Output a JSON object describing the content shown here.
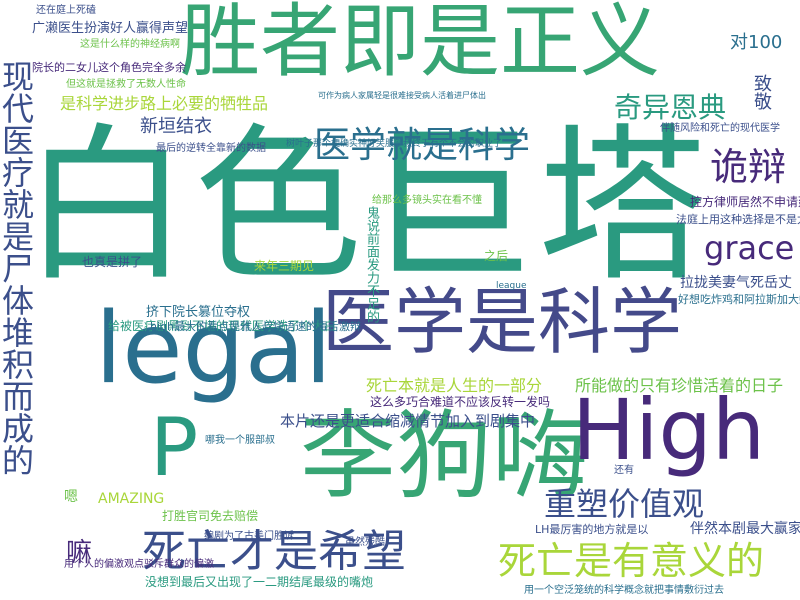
{
  "colors": {
    "background": "#ffffff",
    "teal": "#2a9a80",
    "blue_teal": "#2a6f8e",
    "blue": "#3b4f8b",
    "purple": "#472a7a",
    "green": "#37a574",
    "light_green": "#6cc24a",
    "yellow_green": "#a9d63a"
  },
  "words": {
    "w01": "白色巨塔",
    "w02": "胜者即是正义",
    "w03": "医学是科学",
    "w04": "legal",
    "w05": "李狗嗨",
    "w06": "High",
    "w07": "P",
    "w08": "现代医疗就是尸体堆积而成的",
    "w09": "死亡才是希望",
    "w10": "死亡是有意义的",
    "w11": "重塑价值观",
    "w12": "医学就是科学",
    "w13": "诡辩",
    "w14": "grace",
    "w15": "奇异恩典",
    "w16": "是科学进步路上必要的牺牲品",
    "w17": "新垣结衣",
    "w18": "嘛",
    "w19": "对100",
    "w20": "致敬",
    "w21": "死亡本就是人生的一部分",
    "w22": "所能做的只有珍惜活着的日子",
    "w23": "本片还是更适合缩减情节加入到剧集中",
    "w24": "给被医疗剧黑到不堪的现代医学洗了个大白",
    "w25": "挤下院长篡位夺权",
    "w26": "AMAZING",
    "w27": "打胜官司免去赔偿",
    "w28": "没想到最后又出现了一二期结尾最级的嘴炮",
    "w29": "用一个空泛笼统的科学概念就把事情敷衍过去",
    "w30": "LH最厉害的地方就是以",
    "w31": "伴然本剧最大赢家",
    "w32": "这么多巧合难道不应该反转一发吗",
    "w33": "high最大的看点是雅人叔快语速的毒舌激辩",
    "w34": "拉拢美妻气死岳丈",
    "w35": "好想吃炸鸡和阿拉斯加大螃蟹",
    "w36": "控方律师居然不申请延期审判",
    "w37": "法庭上用这种选择是不是太过儿戏",
    "w38": "广濑医生扮演好人赢得声望",
    "w39": "院长的二女儿这个角色完全多余",
    "w40": "这是什么样的神经病啊",
    "w41": "还在庭上死磕",
    "w42": "但这就是拯救了无数人性命",
    "w43": "最后的逆转全靠新的数据",
    "w44": "来年三期见",
    "w45": "也真是拼了",
    "w46": "编剧为了古美门胜诉",
    "w47": "鬼说前面发力不足的",
    "w48": "之后",
    "w49": "虽然残酷",
    "w50": "嗯",
    "w51": "哪我一个服部叔",
    "w52": "还有",
    "w53": "league",
    "w54": "树叶子那个梗确实神好笑服部叔终于有个不会的职业了",
    "w55": "可作为病人家属轻是很难接受病人活着进尸体出",
    "w56": "用个人的偏激观点驳斥群众的偏激",
    "w57": "给那么多镜头实在看不懂",
    "w58": "伴随风险和死亡的现代医学"
  }
}
